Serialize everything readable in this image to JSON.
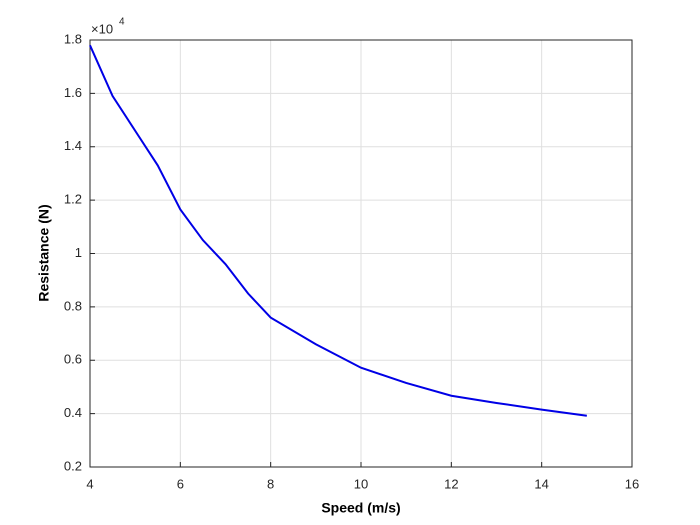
{
  "chart_data": {
    "type": "line",
    "x_label": "Speed (m/s)",
    "y_label": "Resistance (N)",
    "y_exponent_base": "×10",
    "y_exponent_power": "4",
    "x": [
      4,
      4.5,
      5,
      5.5,
      6,
      6.5,
      7,
      7.5,
      8,
      9,
      10,
      11,
      12,
      13,
      14,
      15
    ],
    "series": [
      {
        "color": "#0000e6",
        "values": [
          1.78,
          1.59,
          1.46,
          1.33,
          1.165,
          1.05,
          0.96,
          0.85,
          0.76,
          0.66,
          0.572,
          0.515,
          0.467,
          0.44,
          0.415,
          0.392
        ]
      }
    ],
    "xlim": [
      4,
      16
    ],
    "xticks": [
      4,
      6,
      8,
      10,
      12,
      14,
      16
    ],
    "ylim": [
      0.2,
      1.8
    ],
    "yticks": [
      0.2,
      0.4,
      0.6,
      0.8,
      1,
      1.2,
      1.4,
      1.6,
      1.8
    ],
    "grid": true
  }
}
